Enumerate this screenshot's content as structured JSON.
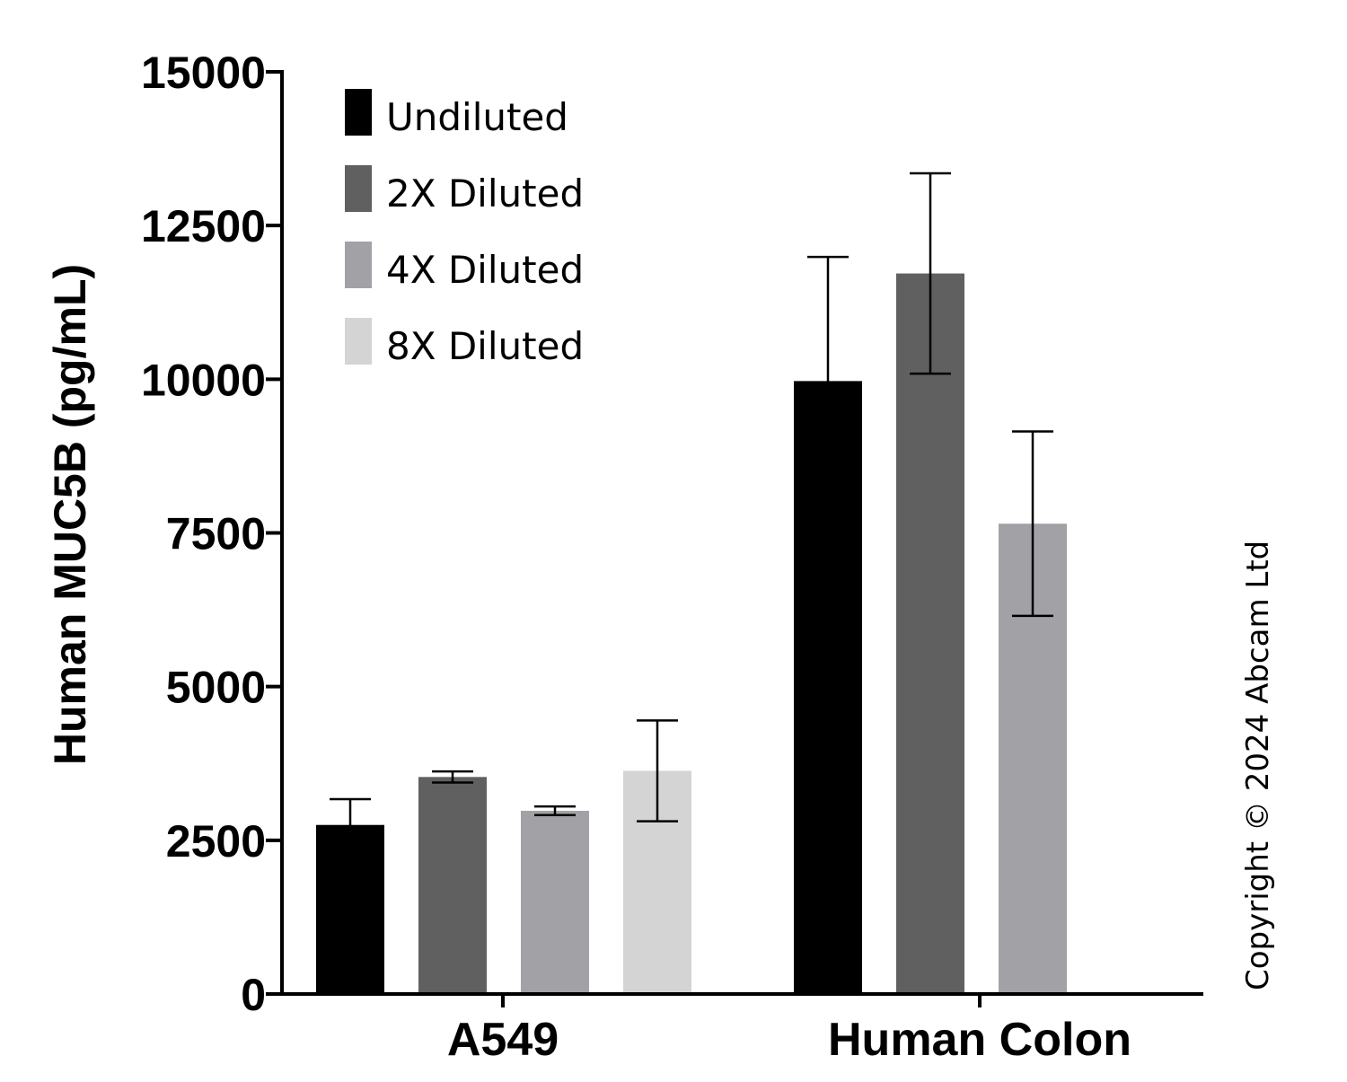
{
  "chart_data": {
    "type": "bar",
    "categories": [
      "A549",
      "Human Colon"
    ],
    "series": [
      {
        "name": "Undiluted",
        "color": "#000000",
        "values": [
          2750,
          9970
        ],
        "errors": [
          420,
          2020
        ]
      },
      {
        "name": "2X Diluted",
        "color": "#606060",
        "values": [
          3530,
          11720
        ],
        "errors": [
          90,
          1630
        ]
      },
      {
        "name": "4X Diluted",
        "color": "#a2a2a6",
        "values": [
          2980,
          7650
        ],
        "errors": [
          70,
          1500
        ]
      },
      {
        "name": "8X Diluted",
        "color": "#d4d4d4",
        "values": [
          3630,
          null
        ],
        "errors": [
          820,
          null
        ]
      }
    ],
    "ylabel": "Human MUC5B (pg/mL)",
    "xlabel": "",
    "ylim": [
      0,
      15000
    ],
    "yticks": [
      "0",
      "2500",
      "5000",
      "7500",
      "10000",
      "12500",
      "15000"
    ],
    "legend_position": "top-left",
    "grid": false
  },
  "copyright": "Copyright © 2024 Abcam Ltd"
}
